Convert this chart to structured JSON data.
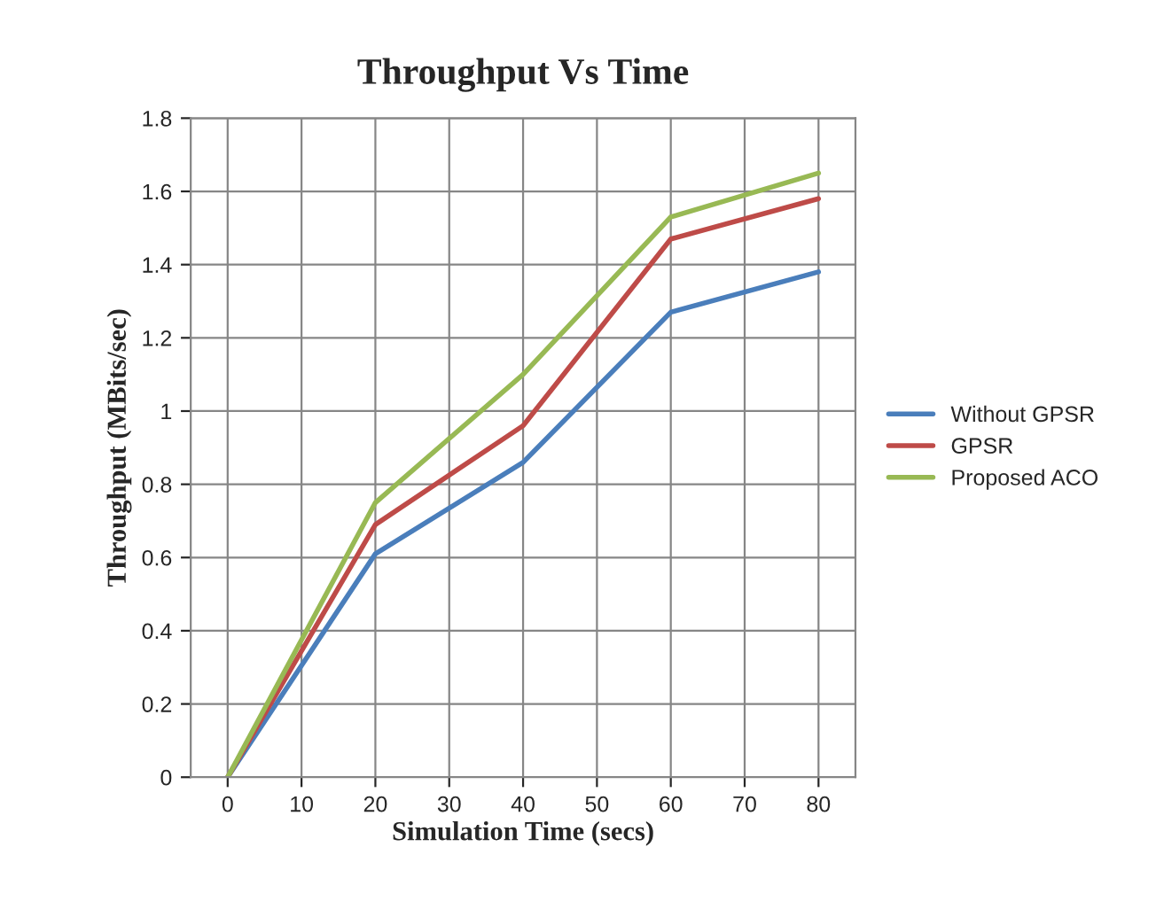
{
  "chart_data": {
    "type": "line",
    "title": "Throughput Vs Time",
    "xlabel": "Simulation Time (secs)",
    "ylabel": "Throughput (MBits/sec)",
    "x": [
      0,
      20,
      40,
      60,
      80
    ],
    "series": [
      {
        "name": "Without GPSR",
        "color": "#4a7ebb",
        "values": [
          0,
          0.61,
          0.86,
          1.27,
          1.38
        ]
      },
      {
        "name": "GPSR",
        "color": "#be4b48",
        "values": [
          0,
          0.69,
          0.96,
          1.47,
          1.58
        ]
      },
      {
        "name": "Proposed ACO",
        "color": "#98b954",
        "values": [
          0,
          0.75,
          1.1,
          1.53,
          1.65
        ]
      }
    ],
    "xlim": [
      -5,
      85
    ],
    "xticks": [
      0,
      10,
      20,
      30,
      40,
      50,
      60,
      70,
      80
    ],
    "ylim": [
      0,
      1.8
    ],
    "yticks": [
      0,
      0.2,
      0.4,
      0.6,
      0.8,
      1,
      1.2,
      1.4,
      1.6,
      1.8
    ],
    "grid": true,
    "legend": "right",
    "marker": "none",
    "line_style": "solid"
  }
}
